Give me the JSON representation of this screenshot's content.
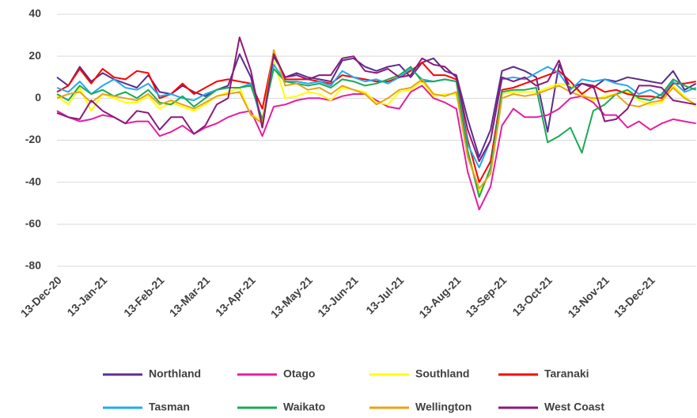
{
  "chart_data": {
    "type": "line",
    "categories": [
      "13-Dec-20",
      null,
      null,
      null,
      "13-Jan-21",
      null,
      null,
      null,
      null,
      "13-Feb-21",
      null,
      null,
      null,
      "13-Mar-21",
      null,
      null,
      null,
      "13-Apr-21",
      null,
      null,
      null,
      null,
      "13-May-21",
      null,
      null,
      null,
      "13-Jun-21",
      null,
      null,
      null,
      "13-Jul-21",
      null,
      null,
      null,
      null,
      "13-Aug-21",
      null,
      null,
      null,
      "13-Sep-21",
      null,
      null,
      null,
      "13-Oct-21",
      null,
      null,
      null,
      null,
      "13-Nov-21",
      null,
      null,
      null,
      "13-Dec-21",
      null,
      null,
      null,
      null
    ],
    "ylim": [
      -80,
      40
    ],
    "yticks": [
      -80,
      -60,
      -40,
      -20,
      0,
      20,
      40
    ],
    "grid": true,
    "legend": "bottom",
    "series": [
      {
        "name": "Northland",
        "color": "#5b2d8e",
        "values": [
          10,
          6,
          15,
          8,
          12,
          9,
          7,
          5,
          11,
          3,
          2,
          6,
          3,
          1,
          4,
          6,
          21,
          10,
          -14,
          20,
          10,
          12,
          10,
          9,
          8,
          18,
          19,
          15,
          13,
          15,
          16,
          10,
          17,
          19,
          13,
          11,
          -10,
          -28,
          -15,
          13,
          15,
          13,
          10,
          -16,
          16,
          5,
          7,
          5,
          9,
          8,
          10,
          9,
          8,
          7,
          13,
          4,
          7
        ]
      },
      {
        "name": "Otago",
        "color": "#e61ea0",
        "values": [
          -6,
          -9,
          -11,
          -10,
          -8,
          -9,
          -12,
          -11,
          -11,
          -18,
          -16,
          -13,
          -17,
          -14,
          -12,
          -9,
          -7,
          -6,
          -18,
          -4,
          -3,
          -1,
          0,
          0,
          -1,
          1,
          2,
          2,
          -1,
          -4,
          -5,
          3,
          6,
          0,
          -2,
          -5,
          -35,
          -53,
          -42,
          -13,
          -5,
          -9,
          -9,
          -8,
          -5,
          0,
          1,
          -2,
          -8,
          -8,
          -14,
          -11,
          -15,
          -12,
          -10,
          -11,
          -12
        ]
      },
      {
        "name": "Southland",
        "color": "#ffff00",
        "values": [
          1,
          -3,
          5,
          -6,
          2,
          0,
          -2,
          -2,
          1,
          -5,
          -2,
          -4,
          -6,
          -3,
          1,
          3,
          5,
          -8,
          -10,
          18,
          0,
          1,
          3,
          2,
          -1,
          5,
          4,
          3,
          -2,
          -3,
          3,
          4,
          8,
          1,
          2,
          2,
          -25,
          -45,
          -35,
          2,
          3,
          3,
          3,
          5,
          7,
          6,
          2,
          -1,
          1,
          2,
          3,
          -1,
          -3,
          -2,
          6,
          1,
          -4
        ]
      },
      {
        "name": "Taranaki",
        "color": "#ff0000",
        "values": [
          3,
          6,
          14,
          7,
          14,
          10,
          9,
          13,
          12,
          0,
          2,
          7,
          2,
          5,
          8,
          9,
          8,
          7,
          -5,
          22,
          9,
          9,
          9,
          8,
          7,
          11,
          10,
          9,
          8,
          8,
          10,
          13,
          17,
          11,
          11,
          9,
          -20,
          -40,
          -30,
          4,
          5,
          7,
          9,
          11,
          13,
          8,
          2,
          6,
          3,
          4,
          2,
          1,
          1,
          0,
          7,
          7,
          8
        ]
      },
      {
        "name": "Tasman",
        "color": "#22aaee",
        "values": [
          5,
          3,
          8,
          2,
          6,
          9,
          5,
          4,
          7,
          1,
          2,
          0,
          -1,
          2,
          4,
          5,
          5,
          7,
          -12,
          16,
          8,
          8,
          7,
          8,
          6,
          13,
          10,
          8,
          9,
          7,
          10,
          14,
          9,
          8,
          9,
          8,
          -22,
          -33,
          -20,
          9,
          10,
          9,
          12,
          15,
          12,
          4,
          9,
          8,
          9,
          7,
          6,
          2,
          4,
          1,
          8,
          3,
          5
        ]
      },
      {
        "name": "Waikato",
        "color": "#1aaa55",
        "values": [
          2,
          -1,
          6,
          2,
          4,
          1,
          3,
          0,
          4,
          -2,
          -3,
          1,
          -4,
          0,
          4,
          5,
          5,
          6,
          -10,
          14,
          8,
          7,
          6,
          7,
          5,
          9,
          8,
          6,
          7,
          9,
          11,
          15,
          8,
          8,
          9,
          8,
          -25,
          -47,
          -33,
          3,
          4,
          4,
          5,
          -21,
          -18,
          -14,
          -26,
          -6,
          -3,
          2,
          4,
          0,
          -1,
          2,
          9,
          6,
          4
        ]
      },
      {
        "name": "Wellington",
        "color": "#e8a317",
        "values": [
          0,
          2,
          3,
          -2,
          2,
          1,
          0,
          -1,
          2,
          -3,
          -1,
          -3,
          -5,
          -2,
          1,
          2,
          3,
          -8,
          -12,
          23,
          6,
          7,
          4,
          5,
          2,
          6,
          4,
          2,
          -3,
          0,
          4,
          5,
          9,
          2,
          1,
          3,
          -28,
          -43,
          -36,
          0,
          2,
          1,
          2,
          4,
          6,
          3,
          1,
          0,
          0,
          2,
          -3,
          -4,
          -2,
          -1,
          5,
          0,
          -3
        ]
      },
      {
        "name": "West Coast",
        "color": "#8b1a7a",
        "values": [
          -7,
          -9,
          -10,
          -1,
          -6,
          -9,
          -12,
          -6,
          -7,
          -15,
          -9,
          -9,
          -17,
          -13,
          -3,
          0,
          29,
          13,
          -14,
          21,
          10,
          11,
          9,
          11,
          11,
          19,
          20,
          13,
          12,
          14,
          10,
          11,
          19,
          16,
          15,
          10,
          -15,
          -30,
          -20,
          10,
          8,
          10,
          6,
          8,
          18,
          2,
          7,
          6,
          -11,
          -10,
          -5,
          6,
          6,
          5,
          -1,
          -2,
          -3
        ]
      }
    ]
  }
}
